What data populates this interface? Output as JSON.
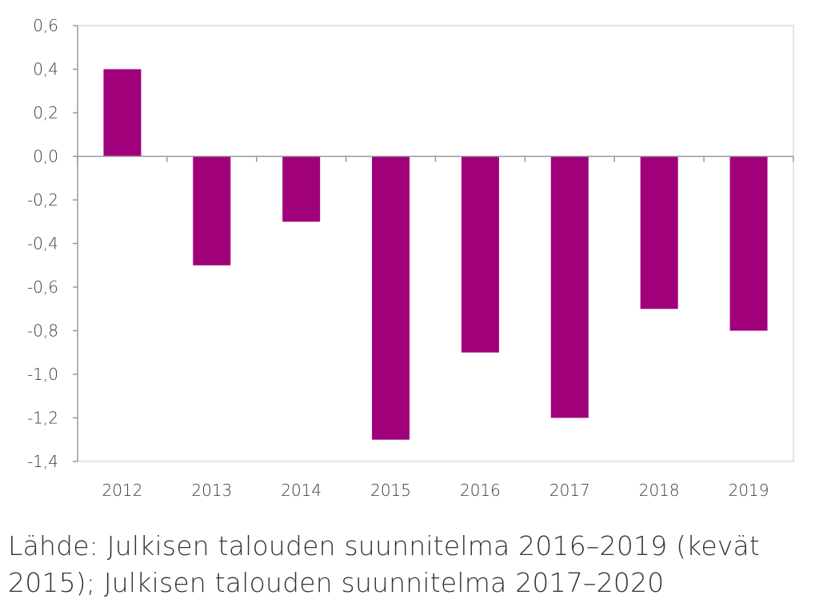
{
  "chart_data": {
    "type": "bar",
    "categories": [
      "2012",
      "2013",
      "2014",
      "2015",
      "2016",
      "2017",
      "2018",
      "2019"
    ],
    "values": [
      0.4,
      -0.5,
      -0.3,
      -1.3,
      -0.9,
      -1.2,
      -0.7,
      -0.8
    ],
    "ylim": [
      -1.4,
      0.6
    ],
    "yticks": [
      0.6,
      0.4,
      0.2,
      0.0,
      -0.2,
      -0.4,
      -0.6,
      -0.8,
      -1.0,
      -1.2,
      -1.4
    ],
    "ytick_labels": [
      "0,6",
      "0,4",
      "0,2",
      "0,0",
      "-0,2",
      "-0,4",
      "-0,6",
      "-0,8",
      "-1,0",
      "-1,2",
      "-1,4"
    ],
    "bar_color": "#a0007a",
    "grid": false,
    "legend": false,
    "title": "",
    "xlabel": "",
    "ylabel": ""
  },
  "source_note": {
    "line1": "Lähde: Julkisen talouden suunnitelma 2016–2019 (kevät",
    "line2": "2015); Julkisen talouden suunnitelma 2017–2020"
  }
}
